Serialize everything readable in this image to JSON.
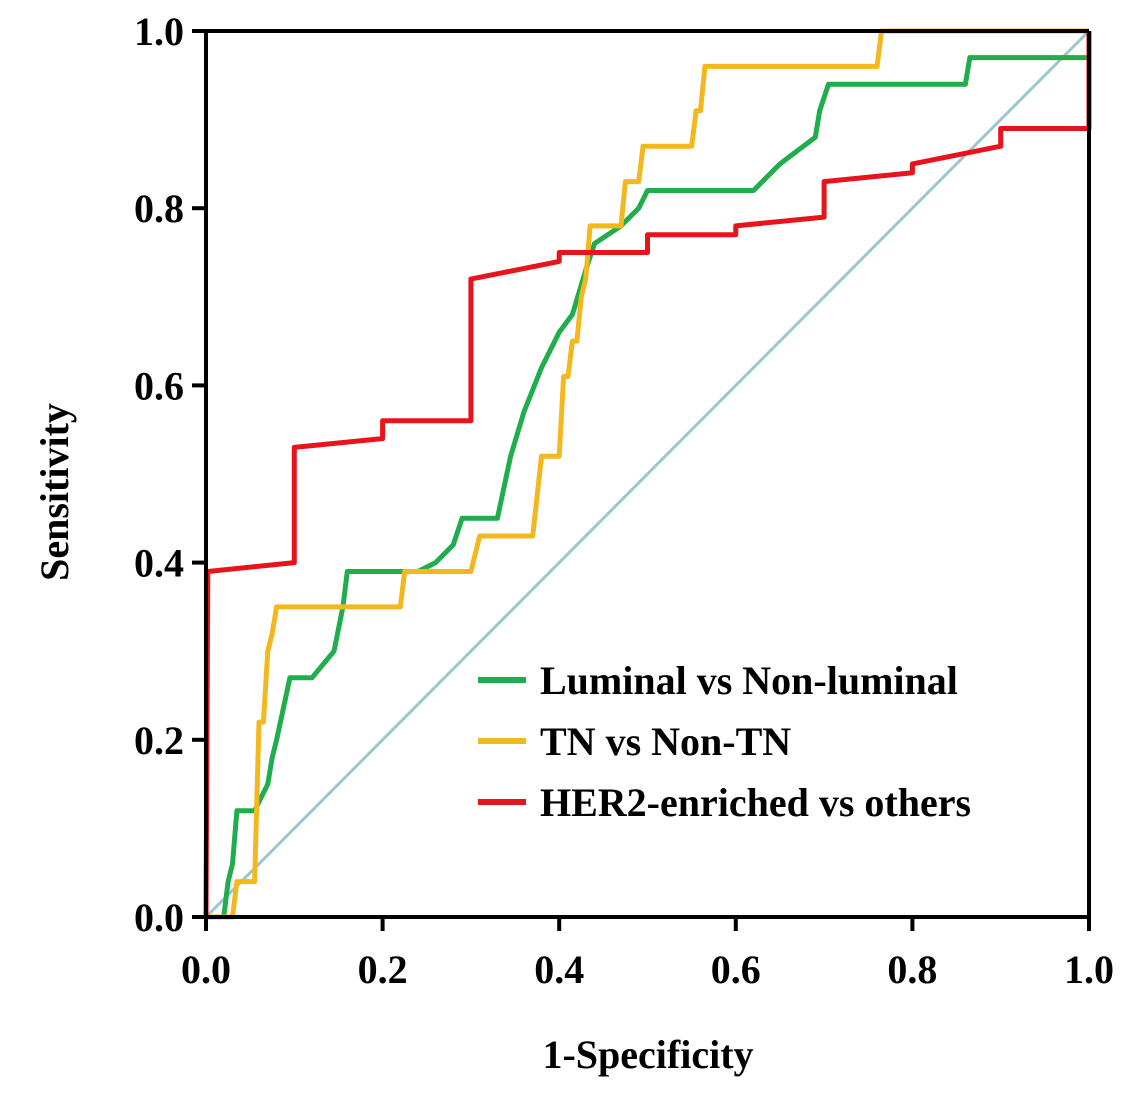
{
  "chart_data": {
    "type": "line",
    "title": "",
    "xlabel": "1-Specificity",
    "ylabel": "Sensitivity",
    "xlim": [
      0,
      1
    ],
    "ylim": [
      0,
      1
    ],
    "grid": false,
    "legend_position": "bottom-right",
    "x_ticks": [
      {
        "value": 0.0,
        "label": "0.0"
      },
      {
        "value": 0.2,
        "label": "0.2"
      },
      {
        "value": 0.4,
        "label": "0.4"
      },
      {
        "value": 0.6,
        "label": "0.6"
      },
      {
        "value": 0.8,
        "label": "0.8"
      },
      {
        "value": 1.0,
        "label": "1.0"
      }
    ],
    "y_ticks": [
      {
        "value": 0.0,
        "label": "0.0"
      },
      {
        "value": 0.2,
        "label": "0.2"
      },
      {
        "value": 0.4,
        "label": "0.4"
      },
      {
        "value": 0.6,
        "label": "0.6"
      },
      {
        "value": 0.8,
        "label": "0.8"
      },
      {
        "value": 1.0,
        "label": "1.0"
      }
    ],
    "reference_line": {
      "name": "diagonal",
      "color": "#9cc7cf",
      "points": [
        [
          0,
          0
        ],
        [
          1,
          1
        ]
      ]
    },
    "series": [
      {
        "name": "Luminal vs Non-luminal",
        "color": "#1fae4b",
        "points": [
          [
            0,
            0
          ],
          [
            0.02,
            0
          ],
          [
            0.025,
            0.04
          ],
          [
            0.03,
            0.06
          ],
          [
            0.035,
            0.12
          ],
          [
            0.055,
            0.12
          ],
          [
            0.06,
            0.13
          ],
          [
            0.07,
            0.15
          ],
          [
            0.075,
            0.18
          ],
          [
            0.08,
            0.2
          ],
          [
            0.095,
            0.27
          ],
          [
            0.12,
            0.27
          ],
          [
            0.145,
            0.3
          ],
          [
            0.155,
            0.35
          ],
          [
            0.16,
            0.39
          ],
          [
            0.24,
            0.39
          ],
          [
            0.26,
            0.4
          ],
          [
            0.28,
            0.42
          ],
          [
            0.29,
            0.45
          ],
          [
            0.33,
            0.45
          ],
          [
            0.345,
            0.52
          ],
          [
            0.36,
            0.57
          ],
          [
            0.38,
            0.62
          ],
          [
            0.4,
            0.66
          ],
          [
            0.415,
            0.68
          ],
          [
            0.43,
            0.73
          ],
          [
            0.44,
            0.76
          ],
          [
            0.47,
            0.78
          ],
          [
            0.49,
            0.8
          ],
          [
            0.5,
            0.82
          ],
          [
            0.62,
            0.82
          ],
          [
            0.65,
            0.85
          ],
          [
            0.69,
            0.88
          ],
          [
            0.695,
            0.91
          ],
          [
            0.705,
            0.94
          ],
          [
            0.86,
            0.94
          ],
          [
            0.865,
            0.97
          ],
          [
            1.0,
            0.97
          ],
          [
            1.0,
            1.0
          ]
        ]
      },
      {
        "name": "TN vs Non-TN",
        "color": "#f4b81f",
        "points": [
          [
            0,
            0
          ],
          [
            0.03,
            0
          ],
          [
            0.035,
            0.04
          ],
          [
            0.055,
            0.04
          ],
          [
            0.06,
            0.22
          ],
          [
            0.065,
            0.22
          ],
          [
            0.07,
            0.3
          ],
          [
            0.075,
            0.32
          ],
          [
            0.08,
            0.35
          ],
          [
            0.22,
            0.35
          ],
          [
            0.225,
            0.39
          ],
          [
            0.3,
            0.39
          ],
          [
            0.31,
            0.43
          ],
          [
            0.37,
            0.43
          ],
          [
            0.38,
            0.52
          ],
          [
            0.4,
            0.52
          ],
          [
            0.405,
            0.61
          ],
          [
            0.41,
            0.61
          ],
          [
            0.415,
            0.65
          ],
          [
            0.42,
            0.65
          ],
          [
            0.425,
            0.7
          ],
          [
            0.43,
            0.72
          ],
          [
            0.435,
            0.78
          ],
          [
            0.47,
            0.78
          ],
          [
            0.475,
            0.83
          ],
          [
            0.49,
            0.83
          ],
          [
            0.495,
            0.87
          ],
          [
            0.55,
            0.87
          ],
          [
            0.555,
            0.91
          ],
          [
            0.56,
            0.91
          ],
          [
            0.565,
            0.96
          ],
          [
            0.76,
            0.96
          ],
          [
            0.765,
            1.0
          ],
          [
            1.0,
            1.0
          ]
        ]
      },
      {
        "name": "HER2-enriched vs others",
        "color": "#e8141b",
        "points": [
          [
            0,
            0
          ],
          [
            0.002,
            0.39
          ],
          [
            0.1,
            0.4
          ],
          [
            0.1,
            0.53
          ],
          [
            0.2,
            0.54
          ],
          [
            0.2,
            0.56
          ],
          [
            0.3,
            0.56
          ],
          [
            0.3,
            0.72
          ],
          [
            0.4,
            0.74
          ],
          [
            0.4,
            0.75
          ],
          [
            0.5,
            0.75
          ],
          [
            0.5,
            0.77
          ],
          [
            0.6,
            0.77
          ],
          [
            0.6,
            0.78
          ],
          [
            0.7,
            0.79
          ],
          [
            0.7,
            0.83
          ],
          [
            0.8,
            0.84
          ],
          [
            0.8,
            0.85
          ],
          [
            0.9,
            0.87
          ],
          [
            0.9,
            0.89
          ],
          [
            1.0,
            0.89
          ],
          [
            1.0,
            1.0
          ]
        ]
      }
    ]
  }
}
